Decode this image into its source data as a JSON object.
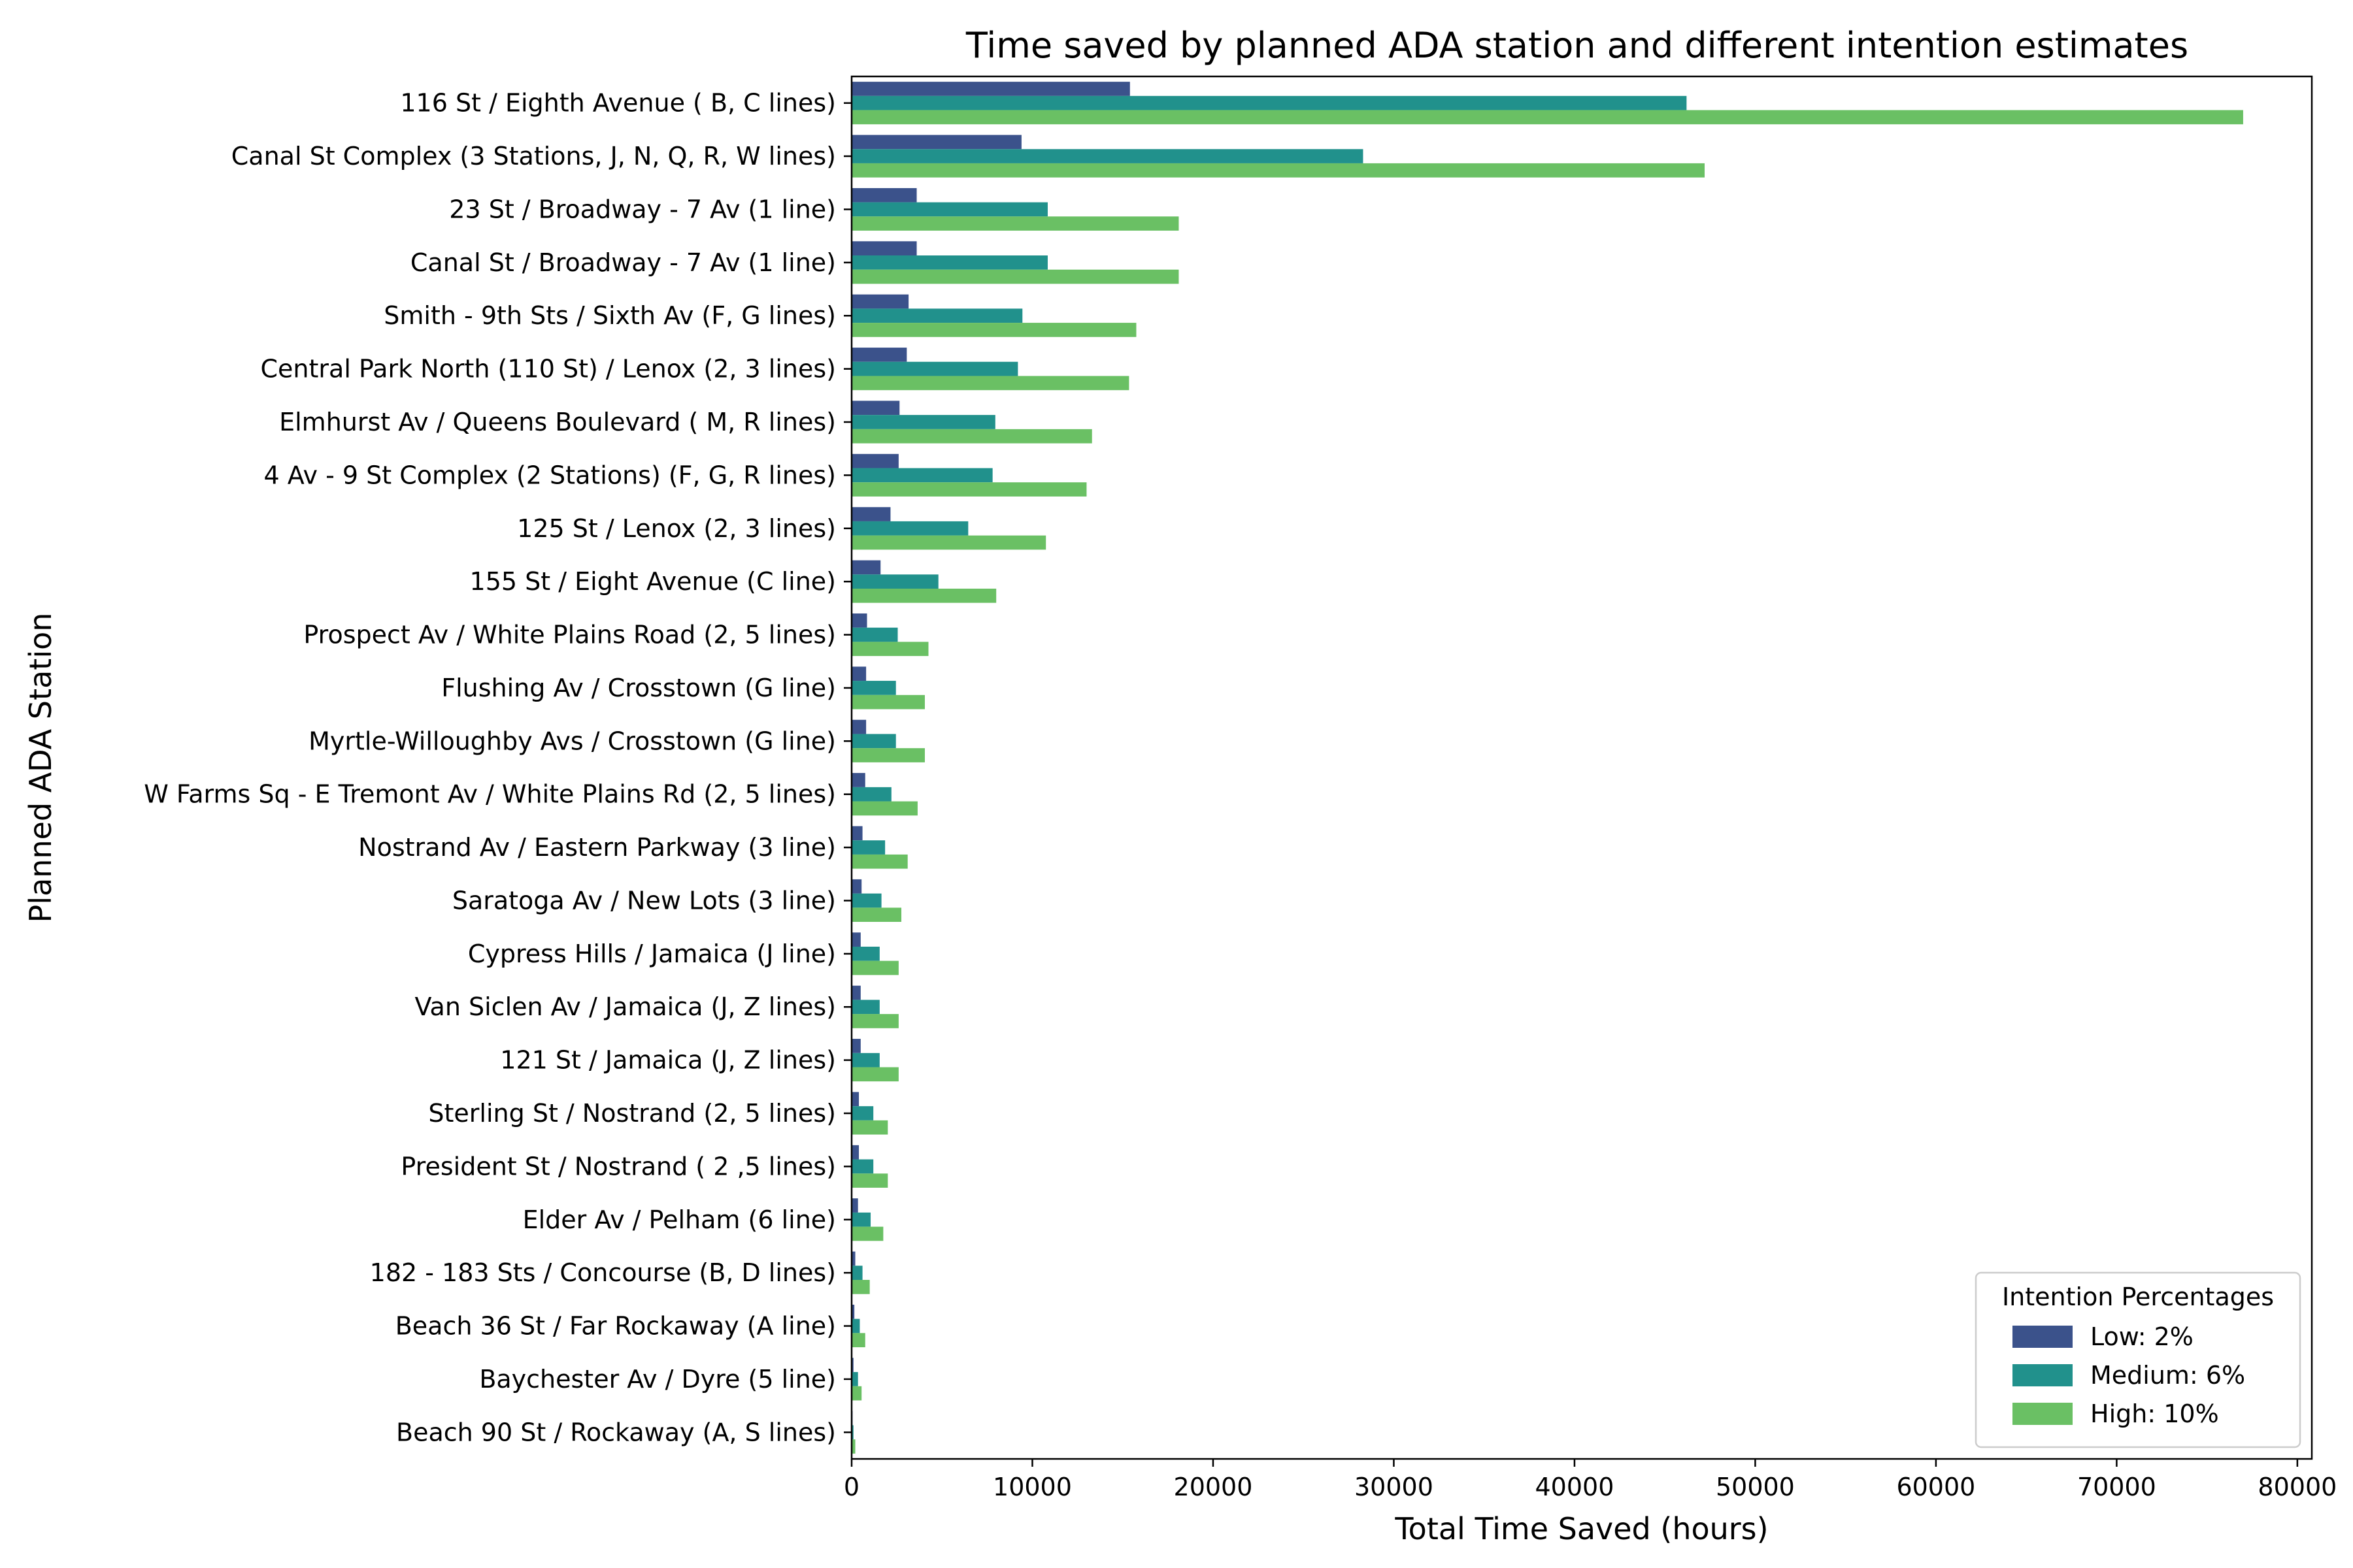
{
  "chart_data": {
    "type": "bar",
    "orientation": "horizontal",
    "title": "Time saved by planned ADA station and different intention estimates",
    "xlabel": "Total Time Saved (hours)",
    "ylabel": "Planned ADA Station",
    "xlim": [
      0,
      80800
    ],
    "xticks": [
      0,
      10000,
      20000,
      30000,
      40000,
      50000,
      60000,
      70000,
      80000
    ],
    "grid": false,
    "legend": {
      "title": "Intention Percentages",
      "placement": "lower-right"
    },
    "categories": [
      "116 St / Eighth Avenue ( B, C lines)",
      "Canal St Complex (3 Stations, J, N, Q, R, W lines)",
      "23 St / Broadway - 7 Av (1 line)",
      "Canal St / Broadway - 7 Av (1 line)",
      "Smith - 9th Sts / Sixth Av (F, G lines)",
      "Central Park North (110 St) / Lenox (2, 3 lines)",
      "Elmhurst Av / Queens Boulevard ( M, R lines)",
      "4 Av - 9 St Complex (2 Stations) (F, G, R lines)",
      "125 St / Lenox (2, 3 lines)",
      "155 St / Eight Avenue (C line)",
      "Prospect Av / White Plains Road (2, 5 lines)",
      "Flushing Av / Crosstown (G line)",
      "Myrtle-Willoughby Avs / Crosstown (G line)",
      "W Farms Sq - E Tremont Av / White Plains Rd (2, 5 lines)",
      "Nostrand Av / Eastern Parkway (3 line)",
      "Saratoga Av / New Lots (3 line)",
      "Cypress Hills / Jamaica (J line)",
      "Van Siclen Av / Jamaica (J, Z lines)",
      "121 St / Jamaica (J, Z lines)",
      "Sterling St / Nostrand (2, 5 lines)",
      "President St / Nostrand ( 2 ,5 lines)",
      "Elder Av / Pelham (6 line)",
      "182 - 183 Sts / Concourse (B, D lines)",
      "Beach 36 St / Far Rockaway (A line)",
      "Baychester Av / Dyre (5 line)",
      "Beach 90 St / Rockaway (A, S lines)"
    ],
    "series": [
      {
        "name": "Low: 2%",
        "color": "#3b528b",
        "values": [
          15400,
          9400,
          3600,
          3600,
          3150,
          3050,
          2650,
          2600,
          2150,
          1600,
          850,
          800,
          800,
          750,
          600,
          550,
          500,
          500,
          500,
          400,
          400,
          350,
          200,
          150,
          100,
          50
        ]
      },
      {
        "name": "Medium: 6%",
        "color": "#21918c",
        "values": [
          46200,
          28300,
          10850,
          10850,
          9450,
          9200,
          7950,
          7800,
          6450,
          4800,
          2550,
          2450,
          2450,
          2200,
          1850,
          1650,
          1550,
          1550,
          1550,
          1200,
          1200,
          1050,
          600,
          450,
          350,
          100
        ]
      },
      {
        "name": "High: 10%",
        "color": "#6ac064",
        "values": [
          77000,
          47200,
          18100,
          18100,
          15750,
          15350,
          13300,
          13000,
          10750,
          8000,
          4250,
          4050,
          4050,
          3650,
          3100,
          2750,
          2600,
          2600,
          2600,
          2000,
          2000,
          1750,
          1000,
          750,
          550,
          200
        ]
      }
    ]
  }
}
